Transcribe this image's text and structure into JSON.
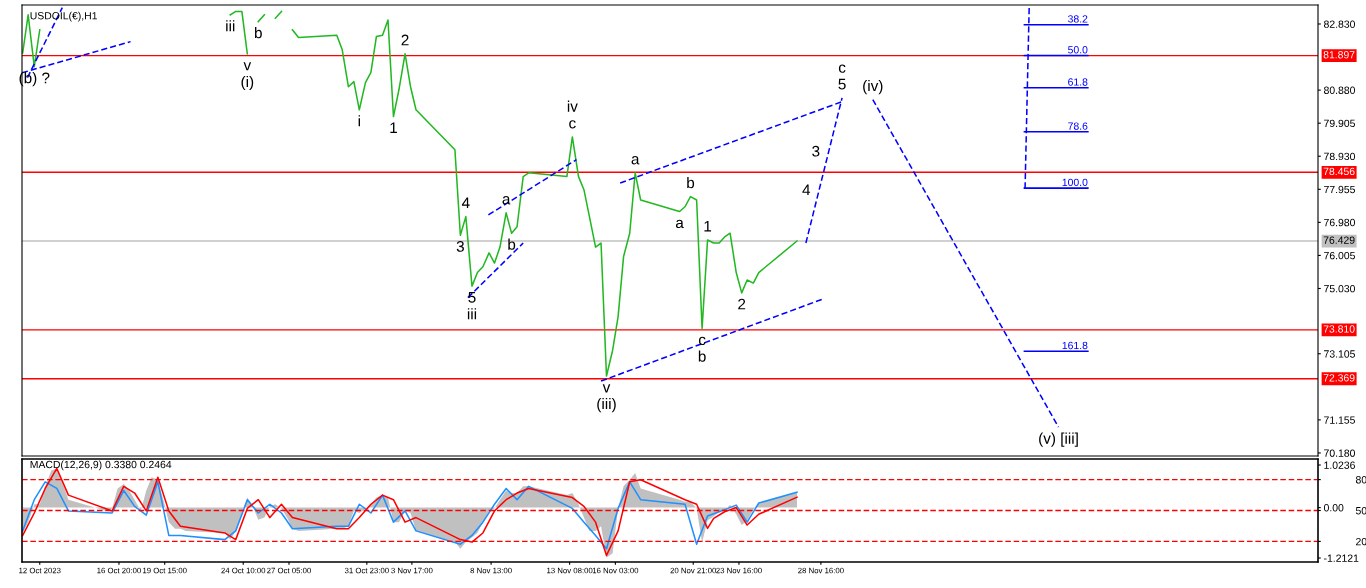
{
  "chart_data": [
    {
      "type": "line",
      "title": "USDOIL(€),H1",
      "tick_labels": "y",
      "x": [
        "2023-10-10T23:00",
        "2023-10-11T07:00",
        "2023-10-11T16:00",
        "2023-10-12T00:00",
        "2023-10-12T08:00",
        "2023-10-12T17:00",
        "2023-10-13T01:00",
        "2023-10-13T09:00",
        "2023-10-13T18:00",
        "2023-10-16T02:00",
        "2023-10-16T10:00",
        "2023-10-16T18:00",
        "2023-10-17T03:00",
        "2023-10-17T11:00",
        "2023-10-17T19:00",
        "2023-10-18T04:00",
        "2023-10-18T12:00",
        "2023-10-18T20:00",
        "2023-10-19T05:00",
        "2023-10-19T13:00",
        "2023-10-19T21:00",
        "2023-10-20T06:00",
        "2023-10-20T14:00",
        "2023-10-20T22:00",
        "2023-10-23T07:00",
        "2023-10-23T15:00",
        "2023-10-23T23:00",
        "2023-10-24T08:00",
        "2023-10-24T16:00",
        "2023-10-25T00:00",
        "2023-10-25T08:00",
        "2023-10-25T17:00",
        "2023-10-26T01:00",
        "2023-10-26T09:00",
        "2023-10-26T18:00",
        "2023-10-27T02:00",
        "2023-10-27T10:00",
        "2023-10-27T19:00",
        "2023-10-30T03:00",
        "2023-10-30T11:00",
        "2023-10-30T20:00",
        "2023-10-31T04:00",
        "2023-10-31T12:00",
        "2023-10-31T21:00",
        "2023-11-01T05:00",
        "2023-11-01T13:00",
        "2023-11-01T22:00",
        "2023-11-02T06:00",
        "2023-11-02T14:00",
        "2023-11-02T22:00",
        "2023-11-03T07:00",
        "2023-11-03T15:00",
        "2023-11-03T23:00",
        "2023-11-06T08:00",
        "2023-11-06T16:00",
        "2023-11-07T00:00",
        "2023-11-07T09:00",
        "2023-11-07T17:00",
        "2023-11-08T01:00",
        "2023-11-08T10:00",
        "2023-11-08T18:00",
        "2023-11-09T02:00",
        "2023-11-09T11:00",
        "2023-11-09T19:00",
        "2023-11-10T03:00",
        "2023-11-10T12:00",
        "2023-11-10T20:00",
        "2023-11-13T04:00",
        "2023-11-13T12:00",
        "2023-11-13T21:00",
        "2023-11-14T05:00",
        "2023-11-14T13:00",
        "2023-11-14T22:00",
        "2023-11-15T06:00",
        "2023-11-15T14:00",
        "2023-11-15T23:00",
        "2023-11-16T07:00",
        "2023-11-16T15:00",
        "2023-11-17T00:00",
        "2023-11-17T08:00",
        "2023-11-17T16:00",
        "2023-11-20T01:00",
        "2023-11-20T09:00",
        "2023-11-20T17:00",
        "2023-11-21T02:00",
        "2023-11-21T10:00",
        "2023-11-21T18:00",
        "2023-11-22T03:00",
        "2023-11-22T11:00",
        "2023-11-22T19:00",
        "2023-11-23T03:00",
        "2023-11-23T12:00",
        "2023-11-23T20:00",
        "2023-11-24T04:00",
        "2023-11-24T13:00",
        "2023-11-24T21:00",
        "2023-11-27T05:00"
      ],
      "xlim": [
        "2023-10-10T22:00",
        "2023-12-29T00:00"
      ],
      "ylim": [
        70.09,
        83.39
      ],
      "yticks": [
        {
          "value": 82.83,
          "label": "82.830"
        },
        {
          "value": 80.88,
          "label": "80.880"
        },
        {
          "value": 79.905,
          "label": "79.905"
        },
        {
          "value": 78.93,
          "label": "78.930"
        },
        {
          "value": 77.955,
          "label": "77.955"
        },
        {
          "value": 76.98,
          "label": "76.980"
        },
        {
          "value": 76.005,
          "label": "76.005"
        },
        {
          "value": 75.03,
          "label": "75.030"
        },
        {
          "value": 73.105,
          "label": "73.105"
        },
        {
          "value": 71.155,
          "label": "71.155"
        },
        {
          "value": 70.18,
          "label": "70.180"
        }
      ],
      "series": [
        {
          "color": "#22b822",
          "values": [
            81.98,
            83.1,
            81.57,
            82.66,
            null,
            null,
            null,
            null,
            null,
            null,
            null,
            null,
            null,
            null,
            null,
            null,
            null,
            null,
            null,
            null,
            null,
            null,
            null,
            null,
            null,
            83.1,
            83.2,
            83.2,
            81.95,
            null,
            82.9,
            83.1,
            null,
            83.0,
            83.2,
            null,
            82.66,
            82.43,
            82.5,
            82.07,
            80.98,
            81.13,
            80.3,
            81.1,
            81.4,
            82.46,
            82.5,
            82.95,
            80.1,
            80.89,
            81.95,
            80.98,
            80.3,
            79.12,
            76.6,
            77.15,
            75.1,
            75.5,
            75.67,
            76.08,
            75.78,
            76.25,
            77.26,
            76.66,
            76.85,
            78.33,
            78.44,
            78.33,
            79.5,
            78.33,
            77.94,
            77.15,
            76.25,
            76.37,
            72.45,
            73.21,
            74.2,
            75.97,
            76.66,
            78.44,
            77.64,
            77.3,
            77.44,
            77.74,
            77.64,
            73.85,
            76.46,
            76.37,
            76.37,
            76.55,
            76.66,
            75.5,
            74.9,
            75.28,
            75.19,
            75.5,
            76.43
          ]
        },
        {
          "color": "#0000ff",
          "line_style": "dashed",
          "x": [
            "2023-10-10T22:00",
            "2023-10-17T13:00"
          ],
          "values": [
            81.39,
            82.31
          ]
        },
        {
          "color": "#0000ff",
          "line_style": "dashed",
          "x": [
            "2023-10-11T06:00",
            "2023-10-13T09:00"
          ],
          "values": [
            81.25,
            83.31
          ]
        },
        {
          "color": "#0000ff",
          "line_style": "dashed",
          "x": [
            "2023-11-07T03:00",
            "2023-11-10T12:00"
          ],
          "values": [
            74.76,
            76.37
          ]
        },
        {
          "color": "#0000ff",
          "line_style": "dashed",
          "x": [
            "2023-11-08T09:00",
            "2023-11-13T18:00"
          ],
          "values": [
            77.2,
            78.83
          ]
        },
        {
          "color": "#0000ff",
          "line_style": "dashed",
          "x": [
            "2023-11-16T10:00",
            "2023-11-29T23:00"
          ],
          "values": [
            78.14,
            80.54
          ]
        },
        {
          "color": "#0000ff",
          "line_style": "dashed",
          "x": [
            "2023-11-15T06:00",
            "2023-11-28T19:00"
          ],
          "values": [
            72.3,
            74.72
          ]
        },
        {
          "color": "#0000ff",
          "line_style": "dashed",
          "x": [
            "2023-11-27T18:00",
            "2023-11-29T23:00"
          ],
          "values": [
            76.37,
            80.65
          ]
        },
        {
          "color": "#0000ff",
          "line_style": "dashed",
          "x": [
            "2023-12-01T20:00",
            "2023-12-13T04:00"
          ],
          "values": [
            80.6,
            70.94
          ]
        },
        {
          "color": "#0000ff",
          "line_style": "dashed",
          "x": [
            "2023-12-11T09:00",
            "2023-12-11T03:00"
          ],
          "values": [
            83.3,
            77.99
          ]
        },
        {
          "name": "38.2",
          "color": "#0000ff",
          "x": [
            "2023-12-11T02:00",
            "2023-12-14T23:00"
          ],
          "values": [
            82.81,
            82.81
          ]
        },
        {
          "name": "50.0",
          "color": "#0000ff",
          "x": [
            "2023-12-11T02:00",
            "2023-12-14T23:00"
          ],
          "values": [
            81.9,
            81.9
          ]
        },
        {
          "name": "61.8",
          "color": "#0000ff",
          "x": [
            "2023-12-11T02:00",
            "2023-12-14T23:00"
          ],
          "values": [
            80.95,
            80.95
          ]
        },
        {
          "name": "78.6",
          "color": "#0000ff",
          "x": [
            "2023-12-11T02:00",
            "2023-12-14T23:00"
          ],
          "values": [
            79.65,
            79.65
          ]
        },
        {
          "name": "100.0",
          "color": "#0000ff",
          "x": [
            "2023-12-11T02:00",
            "2023-12-14T23:00"
          ],
          "values": [
            77.99,
            77.99
          ]
        },
        {
          "name": "161.8",
          "color": "#0000ff",
          "x": [
            "2023-12-11T02:00",
            "2023-12-14T23:00"
          ],
          "values": [
            73.18,
            73.18
          ]
        }
      ],
      "ref_lines": [
        {
          "axis": "y",
          "value": 81.897,
          "label": "81.897",
          "color": "#ff0000",
          "line_style": "solid"
        },
        {
          "axis": "y",
          "value": 78.456,
          "label": "78.456",
          "color": "#ff0000",
          "line_style": "solid"
        },
        {
          "axis": "y",
          "value": 76.429,
          "label": "76.429",
          "color": "#c0c0c0",
          "line_style": "solid"
        },
        {
          "axis": "y",
          "value": 73.81,
          "label": "73.810",
          "color": "#ff0000",
          "line_style": "solid"
        },
        {
          "axis": "y",
          "value": 72.369,
          "label": "72.369",
          "color": "#ff0000",
          "line_style": "solid"
        }
      ],
      "annotations": [
        {
          "text": "(b) ?",
          "x": "2023-10-11T16:00",
          "y": 81.57
        },
        {
          "text": "iii",
          "x": "2023-10-23T15:00",
          "y": 83.1
        },
        {
          "text": "v",
          "x": "2023-10-24T16:00",
          "y": 81.95
        },
        {
          "text": "(i)",
          "x": "2023-10-24T16:00",
          "y": 81.95
        },
        {
          "text": "b",
          "x": "2023-10-25T08:00",
          "y": 82.9
        },
        {
          "text": "i",
          "x": "2023-10-31T12:00",
          "y": 80.3
        },
        {
          "text": "1",
          "x": "2023-11-02T14:00",
          "y": 80.1
        },
        {
          "text": "2",
          "x": "2023-11-03T07:00",
          "y": 81.95
        },
        {
          "text": "3",
          "x": "2023-11-06T16:00",
          "y": 76.6
        },
        {
          "text": "4",
          "x": "2023-11-07T00:00",
          "y": 77.15
        },
        {
          "text": "5",
          "x": "2023-11-07T09:00",
          "y": 75.1
        },
        {
          "text": "iii",
          "x": "2023-11-07T09:00",
          "y": 75.1
        },
        {
          "text": "a",
          "x": "2023-11-09T11:00",
          "y": 77.26
        },
        {
          "text": "b",
          "x": "2023-11-09T19:00",
          "y": 76.66
        },
        {
          "text": "c",
          "x": "2023-11-13T12:00",
          "y": 79.5
        },
        {
          "text": "iv",
          "x": "2023-11-13T12:00",
          "y": 79.5
        },
        {
          "text": "v",
          "x": "2023-11-15T14:00",
          "y": 72.45
        },
        {
          "text": "(iii)",
          "x": "2023-11-15T14:00",
          "y": 72.45
        },
        {
          "text": "a",
          "x": "2023-11-17T08:00",
          "y": 78.44
        },
        {
          "text": "a",
          "x": "2023-11-20T01:00",
          "y": 77.3
        },
        {
          "text": "b",
          "x": "2023-11-20T17:00",
          "y": 77.74
        },
        {
          "text": "c",
          "x": "2023-11-21T10:00",
          "y": 73.85
        },
        {
          "text": "b",
          "x": "2023-11-21T10:00",
          "y": 73.85
        },
        {
          "text": "1",
          "x": "2023-11-21T18:00",
          "y": 76.46
        },
        {
          "text": "2",
          "x": "2023-11-23T20:00",
          "y": 74.9
        },
        {
          "text": "4",
          "x": "2023-11-28T13:00",
          "y": 77.9
        },
        {
          "text": "3",
          "x": "2023-11-29T03:00",
          "y": 79.04
        },
        {
          "text": "5",
          "x": "2023-11-29T23:00",
          "y": 80.65
        },
        {
          "text": "c",
          "x": "2023-11-29T23:00",
          "y": 80.65
        },
        {
          "text": "(iv)",
          "x": "2023-12-01T20:00",
          "y": 80.6
        },
        {
          "text": "(v) [iii]",
          "x": "2023-12-13T04:00",
          "y": 70.94
        }
      ]
    },
    {
      "type": "line",
      "title": "MACD(12,26,9) 0.3380 0.2464",
      "x": [
        "2023-10-10T23:00",
        "2023-10-11T07:00",
        "2023-10-11T16:00",
        "2023-10-12T00:00",
        "2023-10-12T08:00",
        "2023-10-12T17:00",
        "2023-10-13T01:00",
        "2023-10-13T09:00",
        "2023-10-13T18:00",
        "2023-10-16T02:00",
        "2023-10-16T10:00",
        "2023-10-16T18:00",
        "2023-10-17T03:00",
        "2023-10-17T11:00",
        "2023-10-17T19:00",
        "2023-10-18T04:00",
        "2023-10-18T12:00",
        "2023-10-18T20:00",
        "2023-10-19T05:00",
        "2023-10-19T13:00",
        "2023-10-19T21:00",
        "2023-10-20T06:00",
        "2023-10-20T14:00",
        "2023-10-20T22:00",
        "2023-10-23T07:00",
        "2023-10-23T15:00",
        "2023-10-23T23:00",
        "2023-10-24T08:00",
        "2023-10-24T16:00",
        "2023-10-25T00:00",
        "2023-10-25T08:00",
        "2023-10-25T17:00",
        "2023-10-26T01:00",
        "2023-10-26T09:00",
        "2023-10-26T18:00",
        "2023-10-27T02:00",
        "2023-10-27T10:00",
        "2023-10-27T19:00",
        "2023-10-30T03:00",
        "2023-10-30T11:00",
        "2023-10-30T20:00",
        "2023-10-31T04:00",
        "2023-10-31T12:00",
        "2023-10-31T21:00",
        "2023-11-01T05:00",
        "2023-11-01T13:00",
        "2023-11-01T22:00",
        "2023-11-02T06:00",
        "2023-11-02T14:00",
        "2023-11-02T22:00",
        "2023-11-03T07:00",
        "2023-11-03T15:00",
        "2023-11-03T23:00",
        "2023-11-06T08:00",
        "2023-11-06T16:00",
        "2023-11-07T00:00",
        "2023-11-07T09:00",
        "2023-11-07T17:00",
        "2023-11-08T01:00",
        "2023-11-08T10:00",
        "2023-11-08T18:00",
        "2023-11-09T02:00",
        "2023-11-09T11:00",
        "2023-11-09T19:00",
        "2023-11-10T03:00",
        "2023-11-10T12:00",
        "2023-11-10T20:00",
        "2023-11-13T04:00",
        "2023-11-13T12:00",
        "2023-11-13T21:00",
        "2023-11-14T05:00",
        "2023-11-14T13:00",
        "2023-11-14T22:00",
        "2023-11-15T06:00",
        "2023-11-15T14:00",
        "2023-11-15T23:00",
        "2023-11-16T07:00",
        "2023-11-16T15:00",
        "2023-11-17T00:00",
        "2023-11-17T08:00",
        "2023-11-17T16:00",
        "2023-11-20T01:00",
        "2023-11-20T09:00",
        "2023-11-20T17:00",
        "2023-11-21T02:00",
        "2023-11-21T10:00",
        "2023-11-21T18:00",
        "2023-11-22T03:00",
        "2023-11-22T11:00",
        "2023-11-22T19:00",
        "2023-11-23T03:00",
        "2023-11-23T12:00",
        "2023-11-23T20:00",
        "2023-11-24T04:00",
        "2023-11-24T13:00",
        "2023-11-24T21:00",
        "2023-11-27T05:00"
      ],
      "xlim": [
        "2023-10-10T22:00",
        "2023-12-29T00:00"
      ],
      "xticks": [
        {
          "value": "2023-10-12",
          "label": "12 Oct 2023"
        },
        {
          "value": "2023-10-16T20:00",
          "label": "16 Oct 20:00"
        },
        {
          "value": "2023-10-19T15:00",
          "label": "19 Oct 15:00"
        },
        {
          "value": "2023-10-24T10:00",
          "label": "24 Oct 10:00"
        },
        {
          "value": "2023-10-27T05:00",
          "label": "27 Oct 05:00"
        },
        {
          "value": "2023-10-31T23:00",
          "label": "31 Oct 23:00"
        },
        {
          "value": "2023-11-03T17:00",
          "label": "3 Nov 17:00"
        },
        {
          "value": "2023-11-08T13:00",
          "label": "8 Nov 13:00"
        },
        {
          "value": "2023-11-13T08:00",
          "label": "13 Nov 08:00"
        },
        {
          "value": "2023-11-16T03:00",
          "label": "16 Nov 03:00"
        },
        {
          "value": "2023-11-20T21:00",
          "label": "20 Nov 21:00"
        },
        {
          "value": "2023-11-23T16:00",
          "label": "23 Nov 16:00"
        },
        {
          "value": "2023-11-28T16:00",
          "label": "28 Nov 16:00"
        }
      ],
      "ylim": [
        -1.308,
        1.168
      ],
      "yticks": [
        1.0236,
        {
          "value": 0,
          "label": "0.00"
        },
        -1.2121
      ],
      "y2lim": [
        0,
        100
      ],
      "y2ticks": [
        80,
        50,
        20
      ],
      "series": [
        {
          "type": "area",
          "color": "#c0c0c0",
          "values": [
            -0.61,
            -0.35,
            0.08,
            0.08,
            0.51,
            0.89,
            0.94,
            0.62,
            0.19,
            -0.08,
            -0.02,
            0.46,
            0.57,
            0.41,
            0.19,
            -0.08,
            0.41,
            0.73,
            0.67,
            0.19,
            -0.35,
            -0.51,
            -0.51,
            -0.56,
            -0.61,
            -0.77,
            -0.56,
            -0.13,
            0.24,
            0.03,
            -0.29,
            -0.24,
            0.03,
            0.08,
            -0.02,
            -0.24,
            -0.51,
            -0.56,
            -0.51,
            -0.51,
            -0.45,
            -0.08,
            -0.13,
            -0.02,
            0.08,
            0.24,
            0.3,
            0.24,
            -0.35,
            -0.35,
            -0.08,
            -0.13,
            -0.56,
            -0.83,
            -0.99,
            -0.83,
            -0.72,
            -0.61,
            -0.35,
            -0.08,
            -0.02,
            0.19,
            0.41,
            0.35,
            0.35,
            0.51,
            0.51,
            0.3,
            0.35,
            0.08,
            -0.24,
            -0.56,
            -0.56,
            -0.45,
            -1.2,
            -1.1,
            -0.02,
            0.51,
            0.67,
            0.83,
            0.46,
            0.19,
            0.14,
            0.14,
            -0.02,
            -0.84,
            -0.31,
            -0.21,
            -0.1,
            -0.05,
            0.06,
            -0.16,
            -0.42,
            -0.31,
            -0.05,
            0.11,
            0.37
          ]
        },
        {
          "color": "#1e90ff",
          "x": [
            "2023-10-10T23:00",
            "2023-10-11T16:00",
            "2023-10-12T08:00",
            "2023-10-13T01:00",
            "2023-10-13T18:00",
            "2023-10-16T10:00",
            "2023-10-17T03:00",
            "2023-10-17T19:00",
            "2023-10-18T12:00",
            "2023-10-19T05:00",
            "2023-10-19T21:00",
            "2023-10-20T14:00",
            "2023-10-23T07:00",
            "2023-10-23T23:00",
            "2023-10-24T16:00",
            "2023-10-25T08:00",
            "2023-10-26T01:00",
            "2023-10-26T18:00",
            "2023-10-27T10:00",
            "2023-10-30T03:00",
            "2023-10-30T20:00",
            "2023-10-31T12:00",
            "2023-11-01T05:00",
            "2023-11-01T22:00",
            "2023-11-02T14:00",
            "2023-11-03T07:00",
            "2023-11-03T23:00",
            "2023-11-06T16:00",
            "2023-11-07T09:00",
            "2023-11-08T01:00",
            "2023-11-08T18:00",
            "2023-11-09T11:00",
            "2023-11-10T03:00",
            "2023-11-10T20:00",
            "2023-11-13T12:00",
            "2023-11-14T05:00",
            "2023-11-14T22:00",
            "2023-11-15T14:00",
            "2023-11-16T07:00",
            "2023-11-17T00:00",
            "2023-11-17T16:00",
            "2023-11-20T09:00",
            "2023-11-21T02:00",
            "2023-11-21T18:00",
            "2023-11-22T03:00",
            "2023-11-22T19:00",
            "2023-11-23T12:00",
            "2023-11-24T04:00",
            "2023-11-24T21:00",
            "2023-11-27T05:00"
          ],
          "values": [
            -0.56,
            0.19,
            0.62,
            0.46,
            -0.08,
            -0.13,
            0.41,
            0.03,
            -0.18,
            0.62,
            -0.67,
            -0.67,
            -0.77,
            -0.56,
            0.19,
            -0.13,
            0.08,
            -0.13,
            -0.51,
            -0.45,
            -0.45,
            0.08,
            -0.13,
            0.3,
            -0.35,
            -0.08,
            -0.56,
            -0.88,
            -0.67,
            -0.35,
            0.08,
            0.46,
            0.19,
            0.51,
            -0.02,
            -0.35,
            -0.67,
            -0.99,
            -0.02,
            0.62,
            0.19,
            0.08,
            -0.88,
            -0.2,
            -0.15,
            -0.05,
            0.06,
            -0.35,
            0.11,
            0.37
          ]
        },
        {
          "color": "#ff0000",
          "x": [
            "2023-10-10T23:00",
            "2023-10-11T16:00",
            "2023-10-12T08:00",
            "2023-10-13T01:00",
            "2023-10-13T18:00",
            "2023-10-16T10:00",
            "2023-10-17T03:00",
            "2023-10-17T19:00",
            "2023-10-18T12:00",
            "2023-10-19T05:00",
            "2023-10-19T21:00",
            "2023-10-20T14:00",
            "2023-10-23T07:00",
            "2023-10-23T23:00",
            "2023-10-24T16:00",
            "2023-10-25T08:00",
            "2023-10-26T01:00",
            "2023-10-26T18:00",
            "2023-10-27T10:00",
            "2023-10-30T03:00",
            "2023-10-30T20:00",
            "2023-10-31T12:00",
            "2023-11-01T05:00",
            "2023-11-01T22:00",
            "2023-11-02T14:00",
            "2023-11-03T07:00",
            "2023-11-03T23:00",
            "2023-11-06T16:00",
            "2023-11-07T09:00",
            "2023-11-08T01:00",
            "2023-11-08T18:00",
            "2023-11-09T11:00",
            "2023-11-10T03:00",
            "2023-11-10T20:00",
            "2023-11-13T12:00",
            "2023-11-14T05:00",
            "2023-11-14T22:00",
            "2023-11-15T14:00",
            "2023-11-16T07:00",
            "2023-11-17T00:00",
            "2023-11-17T16:00",
            "2023-11-20T09:00",
            "2023-11-21T02:00",
            "2023-11-21T18:00",
            "2023-11-22T03:00",
            "2023-11-22T19:00",
            "2023-11-23T12:00",
            "2023-11-24T04:00",
            "2023-11-24T21:00",
            "2023-11-27T05:00"
          ],
          "values": [
            -0.67,
            -0.13,
            0.46,
            0.94,
            0.3,
            -0.08,
            0.51,
            0.35,
            -0.08,
            0.73,
            -0.08,
            -0.45,
            -0.61,
            -0.77,
            -0.02,
            0.19,
            -0.24,
            0.08,
            -0.24,
            -0.51,
            -0.51,
            -0.24,
            0.08,
            0.3,
            0.19,
            -0.35,
            -0.24,
            -0.77,
            -0.83,
            -0.61,
            -0.08,
            0.19,
            0.35,
            0.46,
            0.24,
            0.03,
            -0.35,
            -1.15,
            -0.56,
            0.62,
            0.67,
            0.19,
            0.08,
            -0.5,
            -0.26,
            -0.1,
            0.0,
            -0.42,
            -0.16,
            0.25
          ]
        }
      ],
      "ref_lines": [
        {
          "axis": "y2",
          "value": 80,
          "color": "#ff0000",
          "line_style": "dashed"
        },
        {
          "axis": "y2",
          "value": 50,
          "color": "#ff0000",
          "line_style": "dashed"
        },
        {
          "axis": "y2",
          "value": 20,
          "color": "#ff0000",
          "line_style": "dashed"
        }
      ]
    }
  ]
}
